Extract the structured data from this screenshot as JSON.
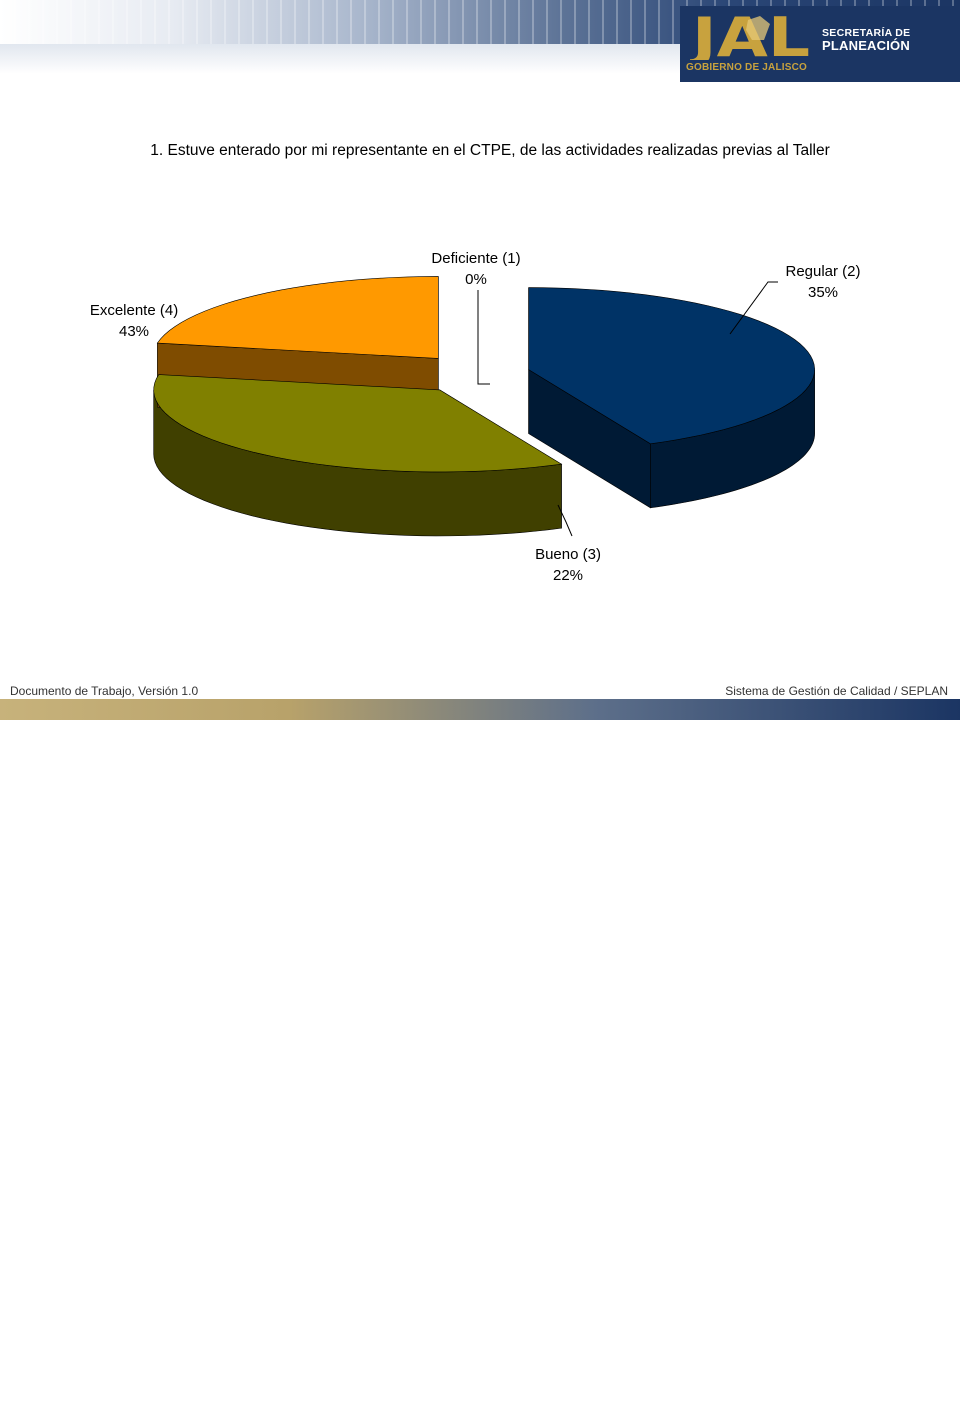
{
  "header": {
    "logo_letters": "JAL",
    "logo_line1": "SECRETARÍA DE",
    "logo_line2": "PLANEACIÓN",
    "logo_sub": "GOBIERNO DE JALISCO"
  },
  "chart_data": {
    "type": "pie",
    "title": "1. Estuve enterado por mi representante en el CTPE, de las actividades realizadas previas al Taller",
    "slices": [
      {
        "label": "Excelente (4)",
        "percent_label": "43%",
        "value": 43,
        "color": "#003366",
        "side_color": "#001a35"
      },
      {
        "label": "Deficiente (1)",
        "percent_label": "0%",
        "value": 0,
        "color": "#ff0000",
        "side_color": "#800000"
      },
      {
        "label": "Regular (2)",
        "percent_label": "35%",
        "value": 35,
        "color": "#808000",
        "side_color": "#404000"
      },
      {
        "label": "Bueno (3)",
        "percent_label": "22%",
        "value": 22,
        "color": "#ff9900",
        "side_color": "#7f4c00"
      }
    ]
  },
  "footer": {
    "left": "Documento de Trabajo, Versión 1.0",
    "right": "Sistema de Gestión de Calidad / SEPLAN"
  }
}
